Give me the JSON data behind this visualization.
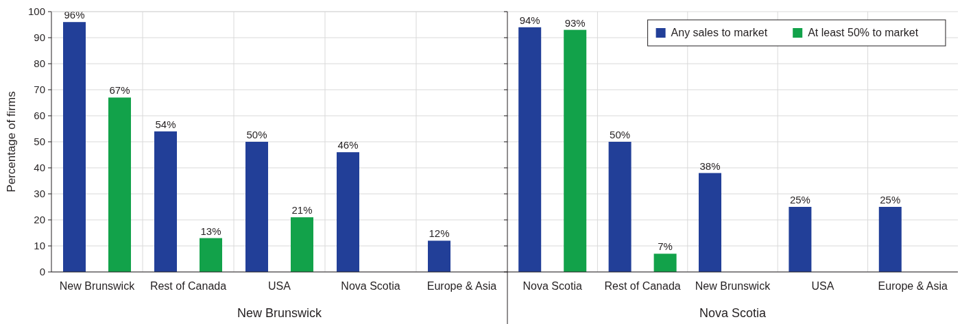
{
  "chart_data": [
    {
      "type": "bar",
      "xlabel": "New Brunswick",
      "ylabel": "Percentage of firms",
      "categories": [
        "New Brunswick",
        "Rest of Canada",
        "USA",
        "Nova Scotia",
        "Europe & Asia"
      ],
      "ylim": [
        0,
        100
      ],
      "yticks": [
        0,
        10,
        20,
        30,
        40,
        50,
        60,
        70,
        80,
        90,
        100
      ],
      "grid": true,
      "legend": false,
      "series": [
        {
          "color": "#223f98",
          "values": [
            96,
            54,
            50,
            46,
            12
          ],
          "value_labels": [
            "96%",
            "54%",
            "50%",
            "46%",
            "12%"
          ]
        },
        {
          "color": "#12a24a",
          "values": [
            67,
            13,
            21,
            null,
            null
          ],
          "value_labels": [
            "67%",
            "13%",
            "21%",
            null,
            null
          ]
        }
      ]
    },
    {
      "type": "bar",
      "xlabel": "Nova Scotia",
      "categories": [
        "Nova Scotia",
        "Rest of Canada",
        "New Brunswick",
        "USA",
        "Europe & Asia"
      ],
      "ylim": [
        0,
        100
      ],
      "yticks": [
        0,
        10,
        20,
        30,
        40,
        50,
        60,
        70,
        80,
        90,
        100
      ],
      "tick_labels": "x",
      "grid": true,
      "legend": "top right",
      "series": [
        {
          "name": "Any sales to market",
          "color": "#223f98",
          "values": [
            94,
            50,
            38,
            25,
            25
          ],
          "value_labels": [
            "94%",
            "50%",
            "38%",
            "25%",
            "25%"
          ]
        },
        {
          "name": "At least 50% to market",
          "color": "#12a24a",
          "values": [
            93,
            7,
            null,
            null,
            null
          ],
          "value_labels": [
            "93%",
            "7%",
            null,
            null,
            null
          ]
        }
      ]
    }
  ]
}
